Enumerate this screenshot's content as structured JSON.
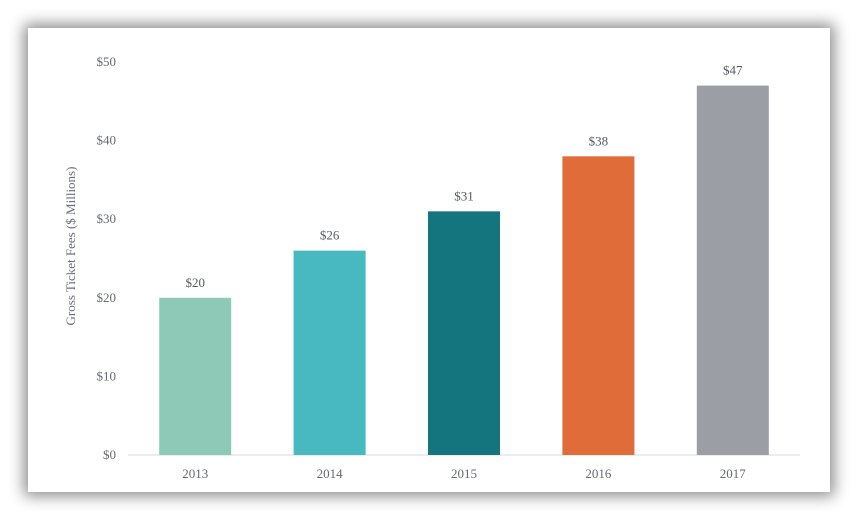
{
  "chart_data": {
    "type": "bar",
    "categories": [
      "2013",
      "2014",
      "2015",
      "2016",
      "2017"
    ],
    "values": [
      20,
      26,
      31,
      38,
      47
    ],
    "value_labels": [
      "$20",
      "$26",
      "$31",
      "$38",
      "$47"
    ],
    "colors": [
      "#8dc9b6",
      "#48b9c0",
      "#14757f",
      "#e06c3a",
      "#9c9ea6"
    ],
    "title": "",
    "xlabel": "",
    "ylabel": "Gross Ticket Fees ($ Millions)",
    "ylim": [
      0,
      50
    ],
    "yticks": [
      0,
      10,
      20,
      30,
      40,
      50
    ],
    "ytick_labels": [
      "$0",
      "$10",
      "$20",
      "$30",
      "$40",
      "$50"
    ],
    "grid": false,
    "legend": "none"
  }
}
